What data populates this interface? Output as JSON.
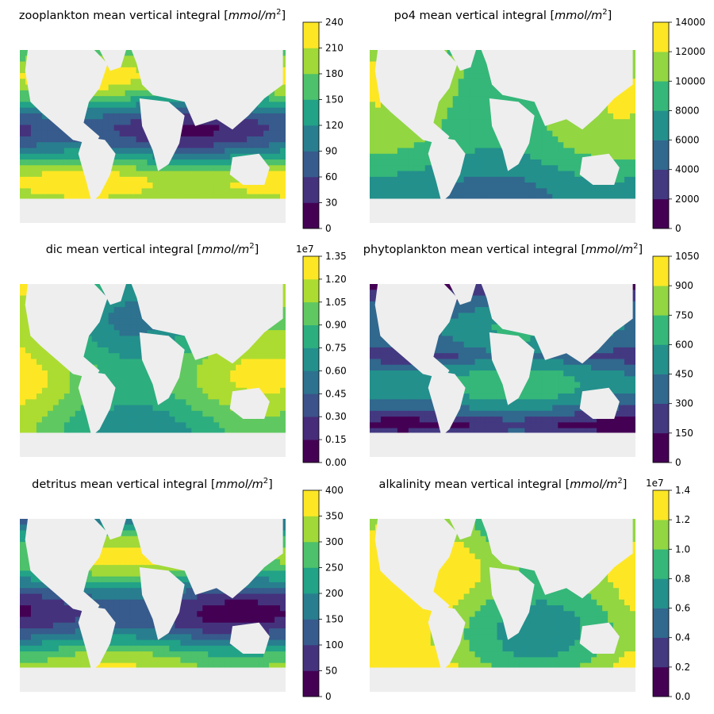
{
  "figure": {
    "panels": [
      {
        "id": "zooplankton",
        "title_pre": "zooplankton mean vertical integral [",
        "unit_base": "mmol/m",
        "unit_exp": "2",
        "title_post": "]",
        "offset": "",
        "ticks": [
          "0",
          "30",
          "60",
          "90",
          "120",
          "150",
          "180",
          "210",
          "240"
        ]
      },
      {
        "id": "po4",
        "title_pre": "po4 mean vertical integral [",
        "unit_base": "mmol/m",
        "unit_exp": "2",
        "title_post": "]",
        "offset": "",
        "ticks": [
          "0",
          "2000",
          "4000",
          "6000",
          "8000",
          "10000",
          "12000",
          "14000"
        ]
      },
      {
        "id": "dic",
        "title_pre": "dic mean vertical integral [",
        "unit_base": "mmol/m",
        "unit_exp": "2",
        "title_post": "]",
        "offset": "1e7",
        "ticks": [
          "0.00",
          "0.15",
          "0.30",
          "0.45",
          "0.60",
          "0.75",
          "0.90",
          "1.05",
          "1.20",
          "1.35"
        ]
      },
      {
        "id": "phytoplankton",
        "title_pre": "phytoplankton mean vertical integral [",
        "unit_base": "mmol/m",
        "unit_exp": "2",
        "title_post": "]",
        "offset": "",
        "ticks": [
          "0",
          "150",
          "300",
          "450",
          "600",
          "750",
          "900",
          "1050"
        ]
      },
      {
        "id": "detritus",
        "title_pre": "detritus mean vertical integral [",
        "unit_base": "mmol/m",
        "unit_exp": "2",
        "title_post": "]",
        "offset": "",
        "ticks": [
          "0",
          "50",
          "100",
          "150",
          "200",
          "250",
          "300",
          "350",
          "400"
        ]
      },
      {
        "id": "alkalinity",
        "title_pre": "alkalinity mean vertical integral [",
        "unit_base": "mmol/m",
        "unit_exp": "2",
        "title_post": "]",
        "offset": "1e7",
        "ticks": [
          "0.0",
          "0.2",
          "0.4",
          "0.6",
          "0.8",
          "1.0",
          "1.2",
          "1.4"
        ]
      }
    ],
    "colormap": "viridis",
    "land_color": "#eeeeee"
  },
  "chart_data": [
    {
      "type": "heatmap",
      "title": "zooplankton mean vertical integral [mmol/m2]",
      "colorbar_range": [
        0,
        240
      ],
      "levels": [
        0,
        30,
        60,
        90,
        120,
        150,
        180,
        210,
        240
      ]
    },
    {
      "type": "heatmap",
      "title": "po4 mean vertical integral [mmol/m2]",
      "colorbar_range": [
        0,
        14000
      ],
      "levels": [
        0,
        2000,
        4000,
        6000,
        8000,
        10000,
        12000,
        14000
      ]
    },
    {
      "type": "heatmap",
      "title": "dic mean vertical integral [mmol/m2]",
      "colorbar_range": [
        0,
        13500000
      ],
      "levels": [
        0,
        1500000,
        3000000,
        4500000,
        6000000,
        7500000,
        9000000,
        10500000,
        12000000,
        13500000
      ]
    },
    {
      "type": "heatmap",
      "title": "phytoplankton mean vertical integral [mmol/m2]",
      "colorbar_range": [
        0,
        1050
      ],
      "levels": [
        0,
        150,
        300,
        450,
        600,
        750,
        900,
        1050
      ]
    },
    {
      "type": "heatmap",
      "title": "detritus mean vertical integral [mmol/m2]",
      "colorbar_range": [
        0,
        400
      ],
      "levels": [
        0,
        50,
        100,
        150,
        200,
        250,
        300,
        350,
        400
      ]
    },
    {
      "type": "heatmap",
      "title": "alkalinity mean vertical integral [mmol/m2]",
      "colorbar_range": [
        0,
        14000000
      ],
      "levels": [
        0,
        2000000,
        4000000,
        6000000,
        8000000,
        10000000,
        12000000,
        14000000
      ]
    }
  ]
}
